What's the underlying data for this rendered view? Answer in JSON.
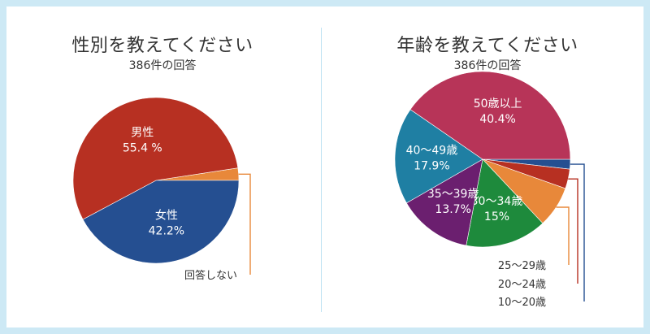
{
  "chart_data": [
    {
      "type": "pie",
      "title": "性別を教えてください",
      "subtitle": "386件の回答",
      "slices": [
        {
          "label": "回答しない",
          "value": 2.4,
          "value_text": "",
          "color": "#e8883a",
          "label_display": "callout"
        },
        {
          "label": "女性",
          "value": 42.2,
          "value_text": "42.2%",
          "color": "#254f91",
          "label_display": "inside"
        },
        {
          "label": "男性",
          "value": 55.4,
          "value_text": "55.4 %",
          "color": "#b73022",
          "label_display": "inside"
        }
      ]
    },
    {
      "type": "pie",
      "title": "年齢を教えてください",
      "subtitle": "386件の回答",
      "slices": [
        {
          "label": "10〜20歳",
          "value": 1.8,
          "value_text": "",
          "color": "#254f91",
          "label_display": "callout"
        },
        {
          "label": "20〜24歳",
          "value": 3.6,
          "value_text": "",
          "color": "#b73022",
          "label_display": "callout"
        },
        {
          "label": "25〜29歳",
          "value": 7.6,
          "value_text": "",
          "color": "#e8883a",
          "label_display": "callout"
        },
        {
          "label": "30〜34歳",
          "value": 15,
          "value_text": "15%",
          "color": "#1e8a3c",
          "label_display": "inside"
        },
        {
          "label": "35〜39歳",
          "value": 13.7,
          "value_text": "13.7%",
          "color": "#6b1f6f",
          "label_display": "inside"
        },
        {
          "label": "40〜49歳",
          "value": 17.9,
          "value_text": "17.9%",
          "color": "#1f7fa3",
          "label_display": "inside"
        },
        {
          "label": "50歳以上",
          "value": 40.4,
          "value_text": "40.4%",
          "color": "#b73458",
          "label_display": "inside"
        }
      ]
    }
  ]
}
